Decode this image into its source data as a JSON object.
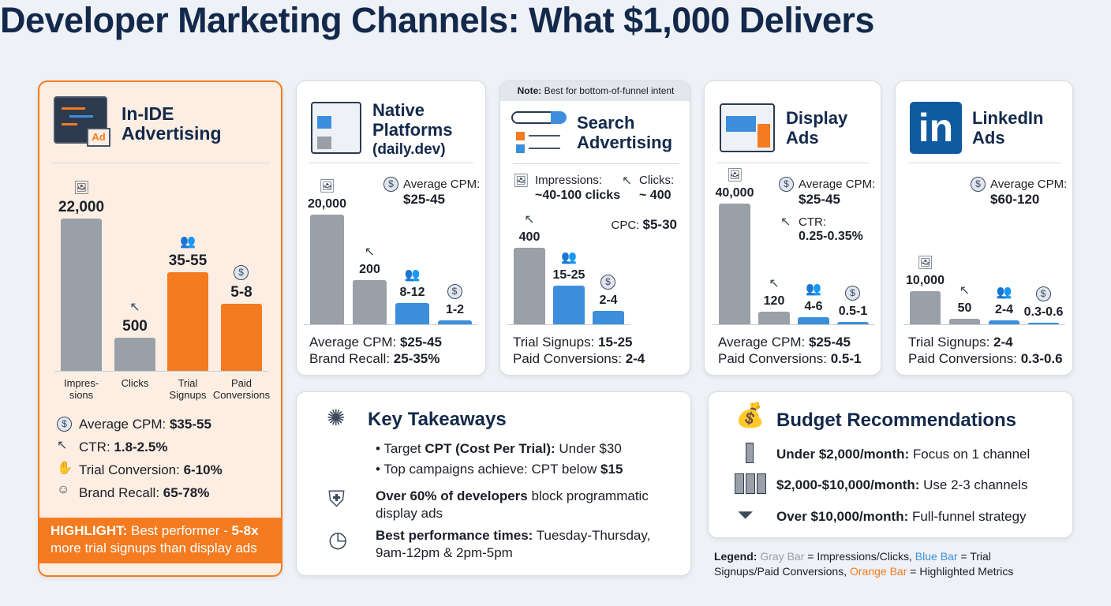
{
  "title": "Developer Marketing Channels: What $1,000 Delivers",
  "colors": {
    "gray": "#9aa0a8",
    "blue": "#3d8fdc",
    "orange": "#f47b20",
    "navy": "#13294b"
  },
  "chart_data": [
    {
      "type": "bar",
      "title": "In-IDE Advertising",
      "categories": [
        "Impres-\nsions",
        "Clicks",
        "Trial\nSignups",
        "Paid\nConversions"
      ],
      "values": [
        "22,000",
        "500",
        "35-55",
        "5-8"
      ],
      "bar_colors": [
        "gray",
        "gray",
        "orange",
        "orange"
      ],
      "icons": [
        "image-icon",
        "cursor-click-icon",
        "users-icon",
        "dollar-coin-icon"
      ]
    },
    {
      "type": "bar",
      "title": "Native Platforms (daily.dev)",
      "categories": [
        "Impressions",
        "Clicks",
        "Trial Signups",
        "Paid Conversions"
      ],
      "values": [
        "20,000",
        "200",
        "8-12",
        "1-2"
      ],
      "bar_colors": [
        "gray",
        "gray",
        "blue",
        "blue"
      ]
    },
    {
      "type": "bar",
      "title": "Search Advertising",
      "categories": [
        "Clicks",
        "Trial Signups",
        "Paid Conversions"
      ],
      "values": [
        "400",
        "15-25",
        "2-4"
      ],
      "bar_colors": [
        "gray",
        "blue",
        "blue"
      ]
    },
    {
      "type": "bar",
      "title": "Display Ads",
      "categories": [
        "Impressions",
        "Clicks",
        "Trial Signups",
        "Paid Conversions"
      ],
      "values": [
        "40,000",
        "120",
        "4-6",
        "0.5-1"
      ],
      "bar_colors": [
        "gray",
        "gray",
        "blue",
        "blue"
      ]
    },
    {
      "type": "bar",
      "title": "LinkedIn Ads",
      "categories": [
        "Impressions",
        "Clicks",
        "Trial Signups",
        "Paid Conversions"
      ],
      "values": [
        "10,000",
        "50",
        "2-4",
        "0.3-0.6"
      ],
      "bar_colors": [
        "gray",
        "gray",
        "blue",
        "blue"
      ]
    }
  ],
  "inide": {
    "t1": "In-IDE",
    "t2": "Advertising",
    "ad_badge": "Ad",
    "stats": [
      {
        "k": "Average CPM: ",
        "v": "$35-55"
      },
      {
        "k": "CTR: ",
        "v": "1.8-2.5%"
      },
      {
        "k": "Trial Conversion: ",
        "v": "6-10%"
      },
      {
        "k": "Brand Recall: ",
        "v": "65-78%"
      }
    ],
    "highlight_label": "HIGHLIGHT:",
    "highlight_text": " Best performer - ",
    "highlight_bold": "5-8x",
    "highlight_line2": "more trial signups than display ads"
  },
  "native": {
    "t1": "Native",
    "t2": "Platforms",
    "t3": "(daily.dev)",
    "cpm_label": "Average CPM:",
    "cpm": "$25-45",
    "f1k": "Average CPM: ",
    "f1v": "$25-45",
    "f2k": "Brand Recall: ",
    "f2v": "25-35%"
  },
  "search": {
    "note_label": "Note:",
    "note": " Best for bottom-of-funnel intent",
    "t1": "Search",
    "t2": "Advertising",
    "imp_label": "Impressions:",
    "imp_value": "~40-100 clicks",
    "clicks_label": "Clicks:",
    "clicks_value": "~ 400",
    "cpc_label": "CPC: ",
    "cpc": "$5-30",
    "f1k": "Trial Signups: ",
    "f1v": "15-25",
    "f2k": "Paid Conversions: ",
    "f2v": "2-4"
  },
  "display": {
    "t1": "Display",
    "t2": "Ads",
    "cpm_label": "Average CPM:",
    "cpm": "$25-45",
    "ctr_label": "CTR:",
    "ctr": "0.25-0.35%",
    "f1k": "Average CPM: ",
    "f1v": "$25-45",
    "f2k": "Paid Conversions: ",
    "f2v": "0.5-1"
  },
  "linkedin": {
    "logo": "in",
    "t1": "LinkedIn",
    "t2": "Ads",
    "cpm_label": "Average CPM:",
    "cpm": "$60-120",
    "f1k": "Trial Signups: ",
    "f1v": "2-4",
    "f2k": "Paid Conversions: ",
    "f2v": "0.3-0.6"
  },
  "takeaways": {
    "title": "Key Takeaways",
    "b1a": "Target ",
    "b1b": "CPT (Cost Per Trial):",
    "b1c": " Under $30",
    "b2a": "Top campaigns achieve: CPT below ",
    "b2b": "$15",
    "p1b": "Over 60% of developers",
    "p1a": " block programmatic",
    "p1c": "display ads",
    "p2b": "Best performance times:",
    "p2a": " Tuesday-Thursday,",
    "p2c": "9am-12pm & 2pm-5pm"
  },
  "budget": {
    "title": "Budget Recommendations",
    "items": [
      {
        "k": "Under $2,000/month:",
        "v": " Focus on 1 channel"
      },
      {
        "k": "$2,000-$10,000/month:",
        "v": " Use 2-3 channels"
      },
      {
        "k": "Over $10,000/month:",
        "v": " Full-funnel strategy"
      }
    ]
  },
  "legend": {
    "label": "Legend:",
    "gray": " Gray Bar",
    "gray_desc": " = Impressions/Clicks,",
    "blue": " Blue Bar",
    "blue_desc": " = Trial",
    "line2a": "Signups/Paid Conversions,",
    "orange": " Orange Bar",
    "orange_desc": " = Highlighted Metrics"
  }
}
